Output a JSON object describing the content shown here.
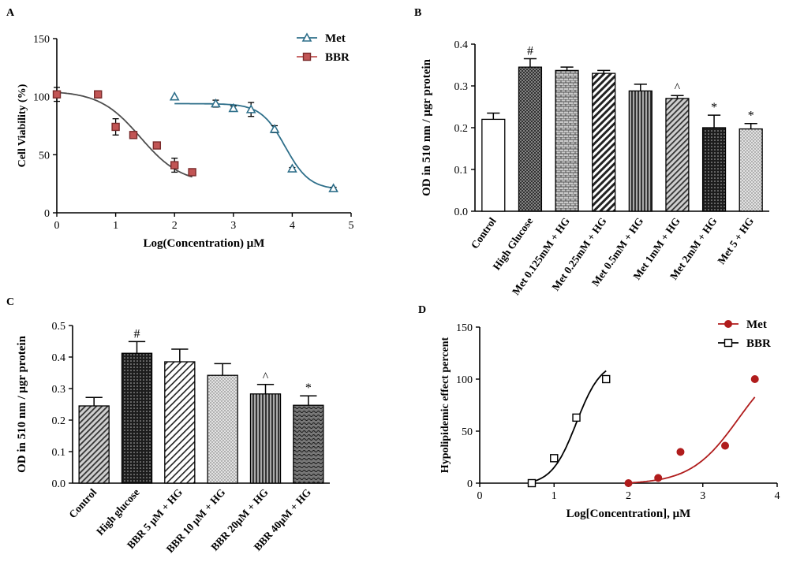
{
  "chart_data": [
    {
      "panel": "A",
      "type": "scatter",
      "xlabel": "Log(Concentration) μM",
      "ylabel": "Cell Viability (%)",
      "xlim": [
        0,
        5
      ],
      "ylim": [
        0,
        150
      ],
      "xticks": [
        "0",
        "1",
        "2",
        "3",
        "4",
        "5"
      ],
      "yticks": [
        "0",
        "50",
        "100",
        "150"
      ],
      "legend_position": "top-right",
      "series": [
        {
          "name": "Met",
          "marker": "triangle",
          "color": "#2e6f8a",
          "x": [
            2.0,
            2.7,
            3.0,
            3.3,
            3.7,
            4.0,
            4.7
          ],
          "y": [
            100,
            94,
            90,
            89,
            72,
            38,
            21
          ],
          "err": [
            0,
            3,
            2,
            6,
            3,
            1,
            1
          ]
        },
        {
          "name": "BBR",
          "marker": "square",
          "color": "#c25555",
          "x": [
            0.0,
            0.7,
            1.0,
            1.3,
            1.7,
            2.0,
            2.3
          ],
          "y": [
            102,
            102,
            74,
            67,
            58,
            41,
            35
          ],
          "err": [
            6,
            3,
            7,
            1,
            1,
            6,
            0
          ]
        }
      ]
    },
    {
      "panel": "B",
      "type": "bar",
      "ylabel": "OD in 510 nm / μgr protein",
      "ylim": [
        0,
        0.4
      ],
      "yticks": [
        "0.0",
        "0.1",
        "0.2",
        "0.3",
        "0.4"
      ],
      "categories": [
        "Control",
        "High Glucose",
        "Met 0.125mM + HG",
        "Met 0.25mM + HG",
        "Met 0.5mM + HG",
        "Met 1mM + HG",
        "Met 2mM + HG",
        "Met 5 + HG"
      ],
      "values": [
        0.22,
        0.345,
        0.337,
        0.33,
        0.288,
        0.27,
        0.2,
        0.197
      ],
      "errors": [
        0.015,
        0.02,
        0.008,
        0.007,
        0.016,
        0.007,
        0.03,
        0.013
      ],
      "annotations": [
        "",
        "#",
        "",
        "",
        "",
        "^",
        "*",
        "*"
      ]
    },
    {
      "panel": "C",
      "type": "bar",
      "ylabel": "OD in 510 nm / μgr protein",
      "ylim": [
        0,
        0.5
      ],
      "yticks": [
        "0.0",
        "0.1",
        "0.2",
        "0.3",
        "0.4",
        "0.5"
      ],
      "categories": [
        "Control",
        "High glucose",
        "BBR 5 μM + HG",
        "BBR 10 μM + HG",
        "BBR 20μM + HG",
        "BBR 40μM + HG"
      ],
      "values": [
        0.245,
        0.412,
        0.385,
        0.342,
        0.283,
        0.247
      ],
      "errors": [
        0.027,
        0.037,
        0.04,
        0.037,
        0.03,
        0.03
      ],
      "annotations": [
        "",
        "#",
        "",
        "",
        "^",
        "*"
      ]
    },
    {
      "panel": "D",
      "type": "scatter",
      "xlabel": "Log[Concentration], μM",
      "ylabel": "Hypolipidemic effect percent",
      "xlim": [
        0,
        4
      ],
      "ylim": [
        0,
        150
      ],
      "xticks": [
        "0",
        "1",
        "2",
        "3",
        "4"
      ],
      "yticks": [
        "0",
        "50",
        "100",
        "150"
      ],
      "legend_position": "top-right",
      "series": [
        {
          "name": "Met",
          "marker": "circle",
          "color": "#b01c1c",
          "x": [
            2.0,
            2.4,
            2.7,
            3.3,
            3.7
          ],
          "y": [
            0,
            5,
            30,
            36,
            100
          ]
        },
        {
          "name": "BBR",
          "marker": "square",
          "color": "#000000",
          "x": [
            0.7,
            1.0,
            1.3,
            1.7
          ],
          "y": [
            0,
            24,
            63,
            100
          ]
        }
      ]
    }
  ],
  "labels": {
    "a": "A",
    "b": "B",
    "c": "C",
    "d": "D"
  }
}
